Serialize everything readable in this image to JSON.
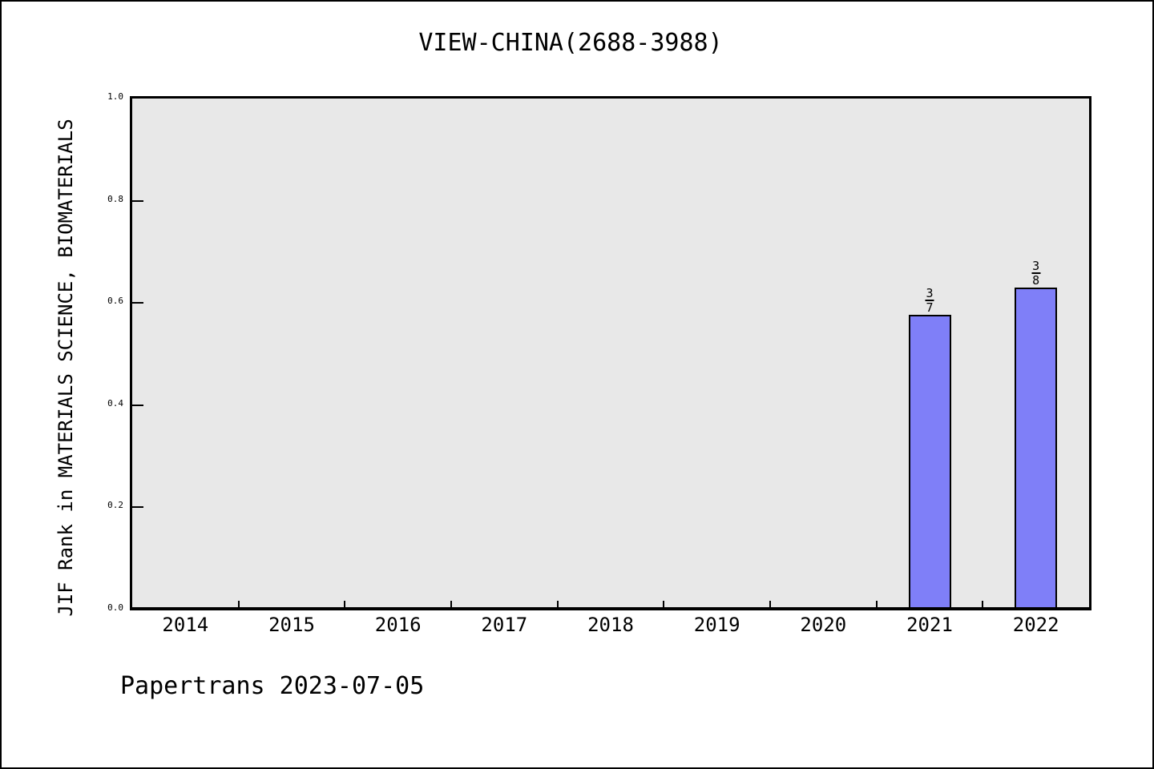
{
  "title": "VIEW-CHINA(2688-3988)",
  "footer": "Papertrans 2023-07-05",
  "chart_data": {
    "type": "bar",
    "title": "VIEW-CHINA(2688-3988)",
    "xlabel": "",
    "ylabel": "JIF Rank in MATERIALS SCIENCE, BIOMATERIALS",
    "categories": [
      "2014",
      "2015",
      "2016",
      "2017",
      "2018",
      "2019",
      "2020",
      "2021",
      "2022"
    ],
    "values": [
      null,
      null,
      null,
      null,
      null,
      null,
      null,
      0.5714,
      0.625
    ],
    "bar_labels": [
      null,
      null,
      null,
      null,
      null,
      null,
      null,
      "3/7",
      "3/8"
    ],
    "annotations": [
      {
        "category": "2021",
        "rank": 3,
        "total": 7,
        "display": "3/7",
        "bar_value": 0.5714
      },
      {
        "category": "2022",
        "rank": 3,
        "total": 8,
        "display": "3/8",
        "bar_value": 0.625
      }
    ],
    "ylim": [
      0.0,
      1.0
    ],
    "yticks": [
      0.0,
      0.2,
      0.4,
      0.6,
      0.8,
      1.0
    ],
    "ytick_labels": [
      "0.0",
      "0.2",
      "0.4",
      "0.6",
      "0.8",
      "1.0"
    ],
    "grid": false,
    "legend": null,
    "colors": {
      "bar_fill": "#7f7ff8",
      "bar_edge": "#000000",
      "plot_background": "#e8e8e8",
      "page_background": "#ffffff",
      "frame": "#000000",
      "text": "#000000"
    }
  }
}
